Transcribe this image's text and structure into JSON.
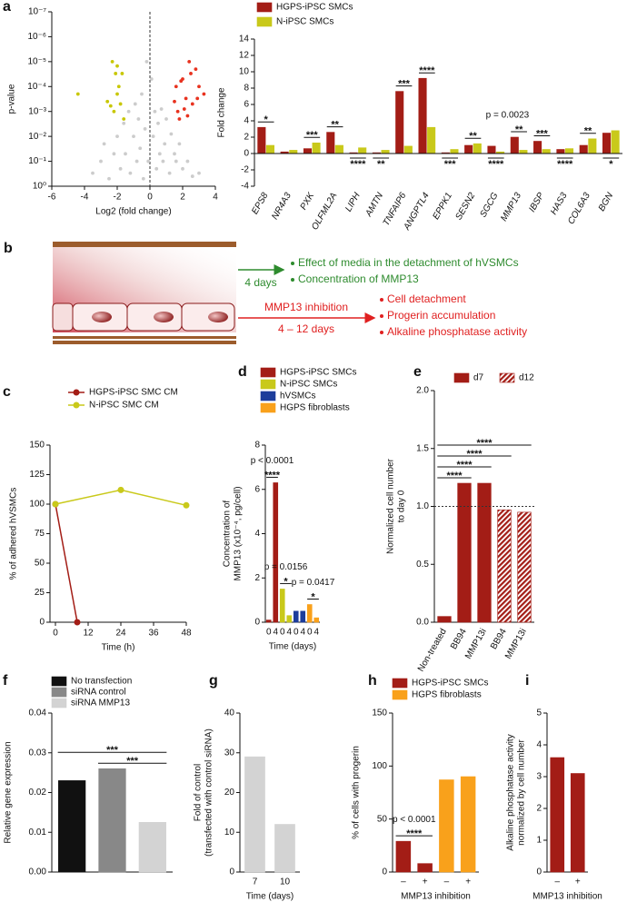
{
  "diagram": {
    "panel": "b",
    "top_arrow_label": "4 days",
    "top_items": [
      "Effect of media in the detachment of hVSMCs",
      "Concentration of MMP13"
    ],
    "bottom_arrow_label": "MMP13 inhibition",
    "bottom_arrow_sublabel": "4 – 12 days",
    "bottom_items": [
      "Cell detachment",
      "Progerin accumulation",
      "Alkaline phosphatase activity"
    ]
  },
  "chart_data": [
    {
      "panel": "a",
      "type": "scatter",
      "xlabel": "Log2 (fold change)",
      "ylabel": "p-value",
      "xlim": [
        -6,
        4
      ],
      "xticks": [
        -6,
        -4,
        -2,
        0,
        2,
        4
      ],
      "ylim": [
        1,
        1e-07
      ],
      "log_y": true,
      "yticks": [
        {
          "value": 1e-07,
          "label": "10⁻⁷"
        },
        {
          "value": 1e-06,
          "label": "10⁻⁶"
        },
        {
          "value": 1e-05,
          "label": "10⁻⁵"
        },
        {
          "value": 0.0001,
          "label": "10⁻⁴"
        },
        {
          "value": 0.001,
          "label": "10⁻³"
        },
        {
          "value": 0.01,
          "label": "10⁻²"
        },
        {
          "value": 0.1,
          "label": "10⁻¹"
        },
        {
          "value": 1,
          "label": "10⁰"
        }
      ],
      "series": [
        {
          "color": "#cccccc",
          "x": [
            -3.5,
            -3.0,
            -2.8,
            -2.5,
            -2.2,
            -2.0,
            -1.8,
            -1.6,
            -1.5,
            -1.3,
            -1.2,
            -1.0,
            -0.9,
            -0.8,
            -0.7,
            -0.6,
            -0.5,
            -0.4,
            -0.3,
            -0.2,
            -0.1,
            0.1,
            0.2,
            0.3,
            0.4,
            0.5,
            0.6,
            0.7,
            0.8,
            0.9,
            1.0,
            1.2,
            1.3,
            1.5,
            1.6,
            1.8,
            2.0,
            2.3,
            2.6,
            3.0
          ],
          "values": [
            0.3,
            0.1,
            0.02,
            0.5,
            0.05,
            0.01,
            0.2,
            0.003,
            0.05,
            0.001,
            0.3,
            0.01,
            0.0005,
            0.1,
            0.002,
            0.03,
            0.0002,
            0.5,
            0.005,
            1e-05,
            0.1,
            5e-05,
            0.01,
            0.001,
            0.2,
            0.003,
            0.05,
            0.0008,
            0.1,
            0.02,
            0.002,
            0.3,
            0.008,
            0.05,
            0.1,
            0.02,
            0.2,
            0.1,
            0.4,
            0.3
          ]
        },
        {
          "color": "#c8c700",
          "x": [
            -4.4,
            -2.6,
            -2.3,
            -2.1,
            -2.0,
            -1.9,
            -1.8,
            -1.7,
            -2.2,
            -1.6,
            -2.4,
            -2.0
          ],
          "values": [
            0.0002,
            0.0004,
            1e-05,
            3e-05,
            0.0002,
            0.0001,
            0.0005,
            3e-05,
            0.001,
            0.002,
            0.0006,
            1.5e-05
          ]
        },
        {
          "color": "#e8321f",
          "x": [
            1.5,
            1.6,
            1.8,
            2.0,
            2.2,
            2.4,
            2.6,
            2.8,
            3.0,
            3.3,
            1.7,
            2.1,
            2.5,
            2.9,
            1.9,
            2.3
          ],
          "values": [
            0.0004,
            0.0001,
            0.002,
            5e-05,
            0.0003,
            1e-05,
            0.0005,
            2e-05,
            0.0001,
            0.0002,
            0.001,
            0.0008,
            3e-05,
            0.0003,
            6e-05,
            0.0015
          ]
        }
      ]
    },
    {
      "type": "bar",
      "ylabel": "Fold change",
      "ylim": [
        -4,
        14
      ],
      "yticks": [
        -4,
        -2,
        0,
        2,
        4,
        6,
        8,
        10,
        12,
        14
      ],
      "categories": [
        "EPS8",
        "NR4A3",
        "PXK",
        "OLFML2A",
        "LIPH",
        "AMTN",
        "TNFAIP6",
        "ANGPTL4",
        "EPPK1",
        "SESN2",
        "SGCG",
        "MMP13",
        "IBSP",
        "HAS3",
        "COL6A3",
        "BGN"
      ],
      "series": [
        {
          "name": "HGPS-iPSC SMCs",
          "color": "#a31d16",
          "values": [
            3.2,
            0.2,
            0.6,
            2.6,
            0.1,
            0.1,
            7.6,
            9.2,
            0.1,
            1.0,
            0.9,
            2.0,
            1.5,
            0.5,
            1.0,
            2.5
          ]
        },
        {
          "name": "N-iPSC SMCs",
          "color": "#c9c91a",
          "values": [
            1.0,
            0.4,
            1.3,
            1.0,
            0.7,
            0.4,
            0.9,
            3.2,
            0.5,
            1.2,
            0.2,
            0.4,
            0.5,
            0.6,
            1.8,
            2.8
          ]
        }
      ],
      "annotations": [
        {
          "text": "*",
          "from": 0,
          "side": "above",
          "bracket": true
        },
        {
          "text": "***",
          "from": 2,
          "side": "above",
          "bracket": true
        },
        {
          "text": "**",
          "from": 3,
          "side": "above",
          "bracket": true
        },
        {
          "text": "****",
          "from": 4,
          "side": "below",
          "bracket": true
        },
        {
          "text": "**",
          "from": 5,
          "side": "below",
          "bracket": true
        },
        {
          "text": "***",
          "from": 6,
          "side": "above",
          "bracket": true
        },
        {
          "text": "****",
          "from": 7,
          "side": "above",
          "bracket": true
        },
        {
          "text": "***",
          "from": 8,
          "side": "below",
          "bracket": true
        },
        {
          "text": "**",
          "from": 9,
          "side": "above",
          "bracket": true
        },
        {
          "text": "****",
          "from": 10,
          "side": "below",
          "bracket": true
        },
        {
          "text": "**",
          "from": 11,
          "side": "above",
          "bracket": true
        },
        {
          "text": "***",
          "from": 12,
          "side": "above",
          "bracket": true
        },
        {
          "text": "****",
          "from": 13,
          "side": "below",
          "bracket": true
        },
        {
          "text": "**",
          "from": 14,
          "side": "above",
          "bracket": true
        },
        {
          "text": "*",
          "from": 15,
          "side": "below",
          "bracket": true
        },
        {
          "text": "p = 0.0023",
          "from": 10,
          "to": 11,
          "side": "above"
        }
      ]
    },
    {
      "panel": "c",
      "type": "line",
      "xlabel": "Time (h)",
      "ylabel": "% of adhered hVSMCs",
      "xlim": [
        -2,
        48
      ],
      "xticks": [
        0,
        12,
        24,
        36,
        48
      ],
      "ylim": [
        0,
        150
      ],
      "yticks": [
        0,
        25,
        50,
        75,
        100,
        125,
        150
      ],
      "series": [
        {
          "name": "HGPS-iPSC SMC CM",
          "color": "#a31d16",
          "x": [
            0,
            8
          ],
          "values": [
            100,
            0
          ]
        },
        {
          "name": "N-iPSC SMC CM",
          "color": "#c9c91a",
          "x": [
            0,
            24,
            48
          ],
          "values": [
            100,
            112,
            99
          ]
        }
      ]
    },
    {
      "panel": "d",
      "type": "bar",
      "xlabel": "Time (days)",
      "ylabel": [
        "Concentration of",
        "MMP13 (x10⁻⁴, pg/cell)"
      ],
      "ylim": [
        0,
        8
      ],
      "yticks": [
        0,
        2,
        4,
        6,
        8
      ],
      "categories": [
        "0",
        "4",
        "0",
        "4",
        "0",
        "4",
        "0",
        "4"
      ],
      "series": [
        {
          "name": "HGPS-iPSC SMCs",
          "color": "#a31d16",
          "values": [
            0.1,
            6.3,
            null,
            null,
            null,
            null,
            null,
            null
          ]
        },
        {
          "name": "N-iPSC SMCs",
          "color": "#c9c91a",
          "values": [
            null,
            null,
            1.5,
            0.3,
            null,
            null,
            null,
            null
          ]
        },
        {
          "name": "hVSMCs",
          "color": "#1c3d9b",
          "values": [
            null,
            null,
            null,
            null,
            0.5,
            0.5,
            null,
            null
          ]
        },
        {
          "name": "HGPS fibroblasts",
          "color": "#f9a11b",
          "values": [
            null,
            null,
            null,
            null,
            null,
            null,
            0.8,
            0.2
          ]
        }
      ],
      "annotations": [
        {
          "text": "****",
          "from": 0,
          "to": 1,
          "bracket": true
        },
        {
          "text": "p < 0.0001",
          "from": 0,
          "to": 1
        },
        {
          "text": "*",
          "from": 2,
          "to": 3,
          "bracket": true
        },
        {
          "text": "p = 0.0156",
          "from": 2,
          "to": 3
        },
        {
          "text": "*",
          "from": 6,
          "to": 7,
          "bracket": true
        },
        {
          "text": "p = 0.0417",
          "from": 6,
          "to": 7
        }
      ]
    },
    {
      "panel": "e",
      "type": "bar",
      "ylabel": [
        "Normalized cell number",
        "to day 0"
      ],
      "ylim": [
        0,
        2
      ],
      "yticks": [
        {
          "value": 0,
          "label": "0.0"
        },
        {
          "value": 0.5,
          "label": "0.5"
        },
        {
          "value": 1,
          "label": "1.0"
        },
        {
          "value": 1.5,
          "label": "1.5"
        },
        {
          "value": 2,
          "label": "2.0"
        }
      ],
      "hline": 1,
      "categories": [
        "Non-treated",
        "BB94",
        "MMP13i",
        "BB94",
        "MMP13i"
      ],
      "series": [
        {
          "name": "d7",
          "color": "#a31d16",
          "values": [
            0.05,
            1.2,
            1.2,
            null,
            null
          ]
        },
        {
          "name": "d12",
          "color": "#a31d16",
          "hatch": true,
          "values": [
            null,
            null,
            null,
            0.97,
            0.95
          ]
        }
      ],
      "annotations": [
        {
          "text": "****",
          "from": 0,
          "to": 1,
          "bracket": true
        },
        {
          "text": "****",
          "from": 0,
          "to": 2,
          "bracket": true
        },
        {
          "text": "****",
          "from": 0,
          "to": 3,
          "bracket": true
        },
        {
          "text": "****",
          "from": 0,
          "to": 4,
          "bracket": true
        }
      ]
    },
    {
      "panel": "f",
      "type": "bar",
      "ylabel": "Relative gene expression",
      "ylim": [
        0,
        0.04
      ],
      "yticks": [
        {
          "value": 0,
          "label": "0.00"
        },
        {
          "value": 0.01,
          "label": "0.01"
        },
        {
          "value": 0.02,
          "label": "0.02"
        },
        {
          "value": 0.03,
          "label": "0.03"
        },
        {
          "value": 0.04,
          "label": "0.04"
        }
      ],
      "categories": [
        null,
        null,
        null
      ],
      "series": [
        {
          "name": "No transfection",
          "color": "#111111",
          "values": [
            0.023,
            null,
            null
          ]
        },
        {
          "name": "siRNA control",
          "color": "#888888",
          "values": [
            null,
            0.026,
            null
          ]
        },
        {
          "name": "siRNA MMP13",
          "color": "#d3d3d3",
          "values": [
            null,
            null,
            0.0125
          ]
        }
      ],
      "annotations": [
        {
          "text": "***",
          "from": 1,
          "to": 2,
          "bracket": true
        },
        {
          "text": "***",
          "from": 0,
          "to": 2,
          "bracket": true
        }
      ]
    },
    {
      "panel": "g",
      "type": "bar",
      "xlabel": "Time (days)",
      "ylabel": [
        "Fold of control",
        "(transfected with control siRNA)"
      ],
      "ylim": [
        0,
        40
      ],
      "yticks": [
        0,
        10,
        20,
        30,
        40
      ],
      "categories": [
        "7",
        "10"
      ],
      "series": [
        {
          "color": "#d3d3d3",
          "values": [
            29,
            12
          ]
        }
      ]
    },
    {
      "panel": "h",
      "type": "bar",
      "xlabel": "MMP13 inhibition",
      "ylabel": "% of cells with progerin",
      "ylim": [
        0,
        150
      ],
      "yticks": [
        0,
        50,
        100,
        150
      ],
      "categories": [
        "–",
        "+",
        "–",
        "+"
      ],
      "series": [
        {
          "name": "HGPS-iPSC SMCs",
          "color": "#a31d16",
          "values": [
            29,
            8,
            null,
            null
          ]
        },
        {
          "name": "HGPS fibroblasts",
          "color": "#f9a11b",
          "values": [
            null,
            null,
            87,
            90
          ]
        }
      ],
      "annotations": [
        {
          "text": "****",
          "from": 0,
          "to": 1,
          "bracket": true
        },
        {
          "text": "p < 0.0001",
          "from": 0,
          "to": 1
        }
      ]
    },
    {
      "panel": "i",
      "type": "bar",
      "xlabel": "MMP13 inhibition",
      "ylabel": [
        "Alkaline phosphatase activity",
        "normalized by cell number"
      ],
      "ylim": [
        0,
        5
      ],
      "yticks": [
        0,
        1,
        2,
        3,
        4,
        5
      ],
      "categories": [
        "–",
        "+"
      ],
      "series": [
        {
          "color": "#a31d16",
          "values": [
            3.6,
            3.1
          ]
        }
      ]
    }
  ]
}
